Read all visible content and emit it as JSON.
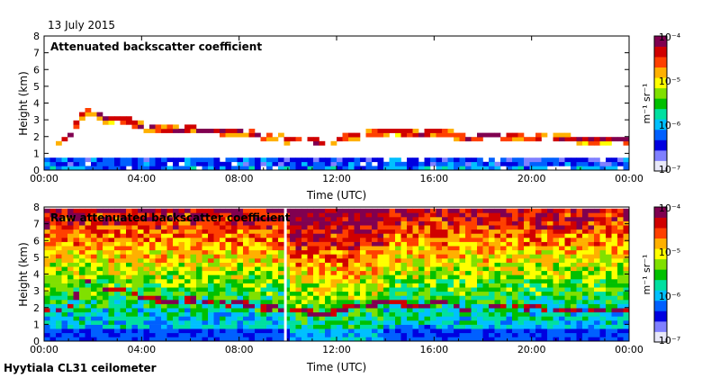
{
  "figure": {
    "date": "13 July 2015",
    "instrument": "Hyytiala CL31 ceilometer"
  },
  "colormap": [
    "#e8e8f8",
    "#8080ff",
    "#0000e0",
    "#0060ff",
    "#00c0ff",
    "#00e0a0",
    "#00c000",
    "#80e000",
    "#ffff00",
    "#ffb000",
    "#ff4000",
    "#d00000",
    "#800050"
  ],
  "chart_data": [
    {
      "type": "heatmap",
      "title": "Attenuated backscatter coefficient",
      "xlabel": "Time (UTC)",
      "ylabel": "Height (km)",
      "x_ticks": [
        "00:00",
        "04:00",
        "08:00",
        "12:00",
        "16:00",
        "20:00",
        "00:00"
      ],
      "xlim": [
        0,
        24
      ],
      "y_ticks": [
        0,
        1,
        2,
        3,
        4,
        5,
        6,
        7,
        8
      ],
      "ylim": [
        0,
        8
      ],
      "colorbar": {
        "label": "m⁻¹ sr⁻¹",
        "ticks": [
          "10⁻⁴",
          "10⁻⁵",
          "10⁻⁶",
          "10⁻⁷"
        ],
        "scale": "log",
        "range": [
          1e-07,
          0.0001
        ]
      },
      "cloud_layer_km": {
        "hours": [
          0.5,
          1,
          1.5,
          2,
          2.5,
          3,
          3.5,
          4,
          4.5,
          5,
          5.5,
          6,
          6.5,
          7,
          7.5,
          8,
          8.5,
          9,
          9.5,
          10,
          10.5,
          11,
          11.5,
          12,
          12.5,
          13,
          13.5,
          14,
          14.5,
          15,
          15.5,
          16,
          16.5,
          17,
          17.5,
          18,
          18.5,
          19,
          19.5,
          20,
          20.5,
          21,
          21.5,
          22,
          22.5,
          23,
          23.5
        ],
        "height": [
          1.8,
          1.9,
          3.2,
          3.6,
          3.0,
          3.1,
          2.9,
          2.6,
          2.5,
          2.4,
          2.4,
          2.5,
          2.3,
          2.4,
          2.2,
          2.3,
          2.2,
          2.0,
          2.0,
          1.8,
          1.9,
          1.7,
          1.6,
          1.8,
          2.0,
          2.1,
          2.2,
          2.3,
          2.3,
          2.2,
          2.1,
          2.3,
          2.2,
          2.0,
          1.8,
          2.1,
          2.1,
          2.0,
          2.0,
          2.0,
          1.9,
          1.9,
          1.9,
          1.8,
          1.8,
          1.8,
          1.8
        ]
      },
      "data_gap_hours": []
    },
    {
      "type": "heatmap",
      "title": "Raw attenuated backscatter coefficient",
      "xlabel": "Time (UTC)",
      "ylabel": "Height (km)",
      "x_ticks": [
        "00:00",
        "04:00",
        "08:00",
        "12:00",
        "16:00",
        "20:00",
        "00:00"
      ],
      "xlim": [
        0,
        24
      ],
      "y_ticks": [
        0,
        1,
        2,
        3,
        4,
        5,
        6,
        7,
        8
      ],
      "ylim": [
        0,
        8
      ],
      "colorbar": {
        "label": "m⁻¹ sr⁻¹",
        "ticks": [
          "10⁻⁴",
          "10⁻⁵",
          "10⁻⁶",
          "10⁻⁷"
        ],
        "scale": "log",
        "range": [
          1e-07,
          0.0001
        ]
      },
      "cloud_layer_km": {
        "hours": [
          0.5,
          1,
          1.5,
          2,
          2.5,
          3,
          3.5,
          4,
          4.5,
          5,
          5.5,
          6,
          6.5,
          7,
          7.5,
          8,
          8.5,
          9,
          9.5,
          10,
          10.5,
          11,
          11.5,
          12,
          12.5,
          13,
          13.5,
          14,
          14.5,
          15,
          15.5,
          16,
          16.5,
          17,
          17.5,
          18,
          18.5,
          19,
          19.5,
          20,
          20.5,
          21,
          21.5,
          22,
          22.5,
          23,
          23.5
        ],
        "height": [
          1.8,
          1.9,
          3.2,
          3.6,
          3.0,
          3.1,
          2.9,
          2.6,
          2.5,
          2.4,
          2.4,
          2.5,
          2.3,
          2.4,
          2.2,
          2.3,
          2.2,
          2.0,
          2.0,
          1.8,
          1.9,
          1.7,
          1.6,
          1.8,
          2.0,
          2.1,
          2.2,
          2.3,
          2.3,
          2.2,
          2.1,
          2.3,
          2.2,
          2.0,
          1.8,
          2.1,
          2.1,
          2.0,
          2.0,
          2.0,
          1.9,
          1.9,
          1.9,
          1.8,
          1.8,
          1.8,
          1.8
        ]
      },
      "data_gap_hours": [
        9.9
      ]
    }
  ]
}
